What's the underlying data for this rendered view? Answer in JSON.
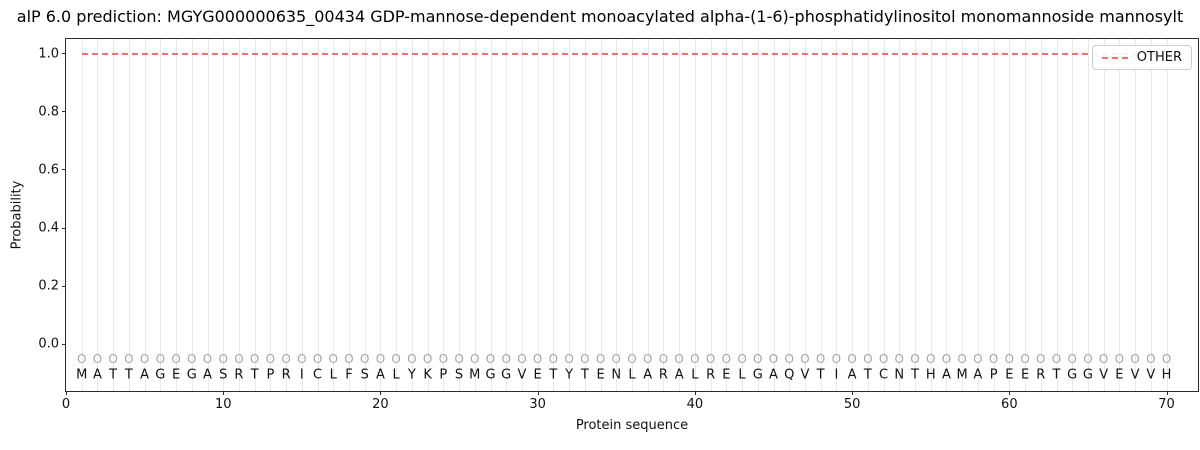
{
  "chart_data": {
    "type": "line",
    "title": "alP 6.0 prediction: MGYG000000635_00434 GDP-mannose-dependent monoacylated alpha-(1-6)-phosphatidylinositol monomannoside mannosylt",
    "xlabel": "Protein sequence",
    "ylabel": "Probability",
    "xlim": [
      0,
      72
    ],
    "ylim": [
      -0.16,
      1.05
    ],
    "x_ticks": [
      0,
      10,
      20,
      30,
      40,
      50,
      60,
      70
    ],
    "y_ticks": [
      0.0,
      0.2,
      0.4,
      0.6,
      0.8,
      1.0
    ],
    "y_tick_labels": [
      "0.0",
      "0.2",
      "0.4",
      "0.6",
      "0.8",
      "1.0"
    ],
    "grid": {
      "vertical_per_residue": true,
      "horizontal": false,
      "color": "#e9e9e9"
    },
    "legend": {
      "position": "upper right",
      "entries": [
        {
          "label": "OTHER",
          "color": "#ee7272",
          "linestyle": "dashed"
        }
      ]
    },
    "series": [
      {
        "name": "OTHER",
        "style": "dashed-horizontal",
        "y": 1.0,
        "x_start": 1,
        "x_end": 70,
        "color": "#ee7272"
      }
    ],
    "sequence": "MATTAGEGASRTPRICLFSALYKPSMGGVETYTENLARALRELGAQVTIATCNTHAMAPEERTGGVEVVH",
    "sequence_y": -0.105,
    "position_marker": {
      "symbol": "O",
      "y": -0.05,
      "color": "#a6a6a6"
    }
  }
}
